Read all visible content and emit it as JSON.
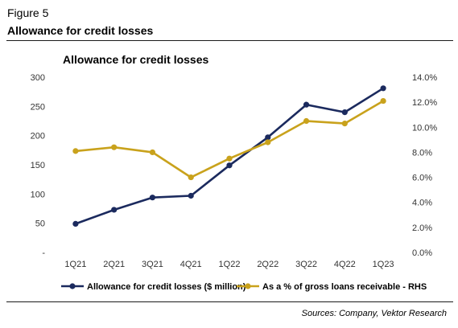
{
  "figure": {
    "label": "Figure 5",
    "title": "Allowance for credit losses",
    "source": "Sources: Company, Vektor Research"
  },
  "chart_data": {
    "type": "line",
    "title": "Allowance for credit losses",
    "categories": [
      "1Q21",
      "2Q21",
      "3Q21",
      "4Q21",
      "1Q22",
      "2Q22",
      "3Q22",
      "4Q22",
      "1Q23"
    ],
    "y_left": {
      "ylim": [
        0,
        300
      ],
      "ticks": [
        "-",
        "50",
        "100",
        "150",
        "200",
        "250",
        "300"
      ],
      "tick_values": [
        0,
        50,
        100,
        150,
        200,
        250,
        300
      ]
    },
    "y_right": {
      "ylim": [
        0,
        14
      ],
      "ticks": [
        "0.0%",
        "2.0%",
        "4.0%",
        "6.0%",
        "8.0%",
        "10.0%",
        "12.0%",
        "14.0%"
      ],
      "tick_values": [
        0,
        2,
        4,
        6,
        8,
        10,
        12,
        14
      ]
    },
    "series": [
      {
        "name": "Allowance for credit losses ($ million)",
        "axis": "left",
        "color": "#1b2a5e",
        "values": [
          49,
          73,
          94,
          97,
          149,
          197,
          253,
          240,
          281
        ]
      },
      {
        "name": "As a % of gross loans receivable - RHS",
        "axis": "right",
        "color": "#c9a21c",
        "values": [
          8.1,
          8.4,
          8.0,
          6.0,
          7.5,
          8.8,
          10.5,
          10.3,
          12.1
        ]
      }
    ],
    "grid": false,
    "legend": "bottom"
  }
}
